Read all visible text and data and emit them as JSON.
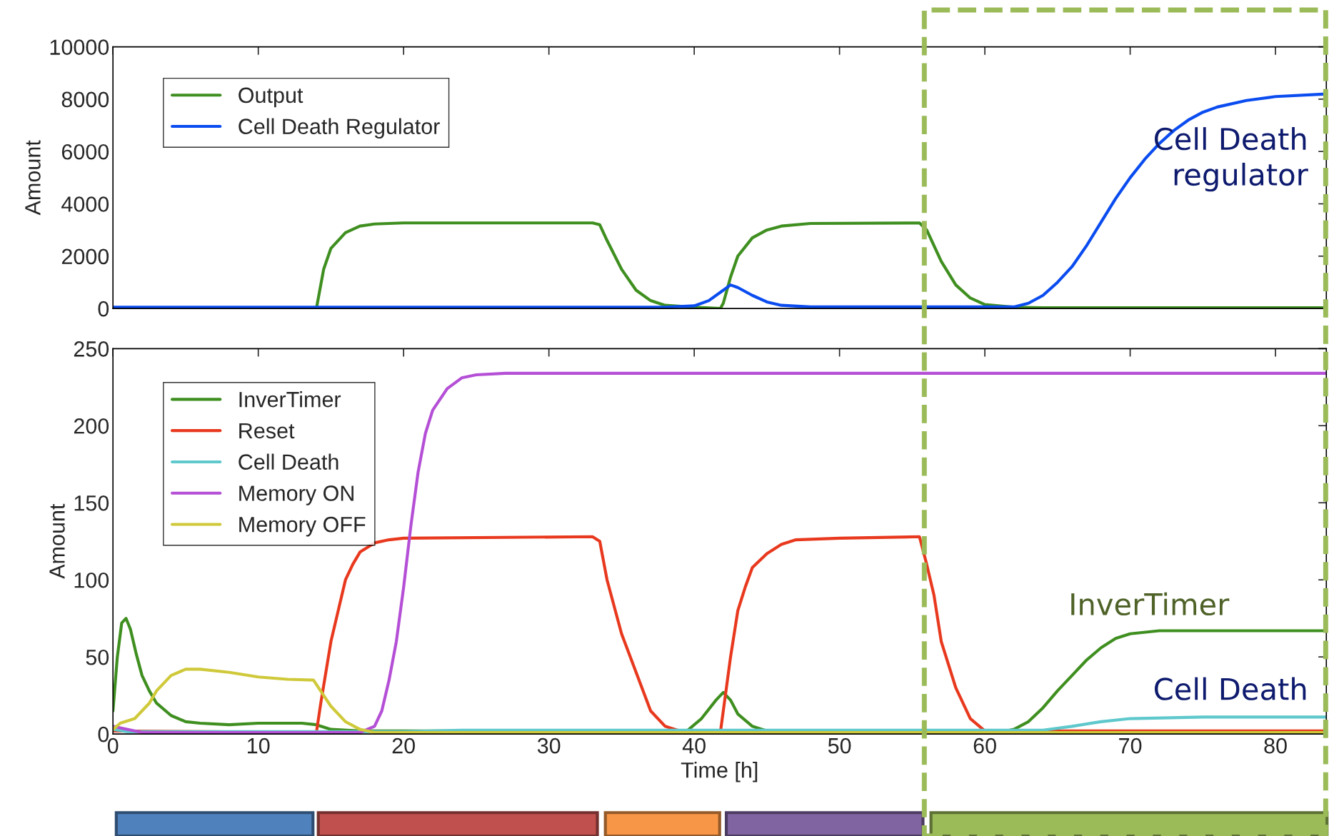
{
  "chart_data": [
    {
      "type": "line",
      "ylabel": "Amount",
      "xlim": [
        0,
        83.5
      ],
      "ylim": [
        0,
        10000
      ],
      "xticks": [
        0,
        10,
        20,
        30,
        40,
        50,
        60,
        70,
        80
      ],
      "yticks": [
        0,
        2000,
        4000,
        6000,
        8000,
        10000
      ],
      "tick_labels": "y",
      "grid": false,
      "legend": "top left",
      "line_style": "solid",
      "series": [
        {
          "name": "Output",
          "color": "#3f8f20",
          "x": [
            0,
            14,
            14.5,
            15,
            16,
            17,
            18,
            20,
            33,
            33.5,
            34,
            35,
            36,
            37,
            38,
            40,
            41.8,
            42,
            42.5,
            43,
            44,
            45,
            46,
            48,
            55.5,
            56,
            57,
            58,
            59,
            60,
            62,
            64,
            83.5
          ],
          "values": [
            0,
            0,
            1500,
            2300,
            2900,
            3150,
            3230,
            3270,
            3270,
            3200,
            2600,
            1500,
            700,
            300,
            120,
            50,
            0,
            200,
            1200,
            2000,
            2700,
            3000,
            3150,
            3250,
            3270,
            3000,
            1800,
            900,
            400,
            150,
            50,
            30,
            30
          ]
        },
        {
          "name": "Cell Death Regulator",
          "color": "#0a4cf0",
          "x": [
            0,
            38,
            40,
            41,
            42,
            42.5,
            43,
            44,
            45,
            46,
            48,
            62,
            63,
            64,
            65,
            66,
            67,
            68,
            69,
            70,
            71,
            72,
            73,
            74,
            75,
            76,
            78,
            80,
            83.5
          ],
          "values": [
            50,
            50,
            100,
            300,
            700,
            900,
            800,
            500,
            250,
            120,
            60,
            60,
            200,
            500,
            1000,
            1600,
            2400,
            3300,
            4200,
            5000,
            5700,
            6300,
            6800,
            7200,
            7500,
            7700,
            7950,
            8100,
            8200
          ]
        }
      ],
      "annotations": [
        "Cell Death\nregulator"
      ]
    },
    {
      "type": "line",
      "xlabel": "Time [h]",
      "ylabel": "Amount",
      "xlim": [
        0,
        83.5
      ],
      "ylim": [
        0,
        250
      ],
      "xticks": [
        0,
        10,
        20,
        30,
        40,
        50,
        60,
        70,
        80
      ],
      "yticks": [
        0,
        50,
        100,
        150,
        200,
        250
      ],
      "grid": false,
      "legend": "top left",
      "line_style": "solid",
      "series": [
        {
          "name": "InverTimer",
          "color": "#3f8f20",
          "x": [
            0,
            0.3,
            0.6,
            0.9,
            1.2,
            1.6,
            2,
            2.5,
            3,
            4,
            5,
            6,
            8,
            10,
            13,
            14,
            15,
            17,
            39.5,
            40.5,
            41.5,
            42,
            42.5,
            43,
            44,
            45,
            61.5,
            62,
            63,
            64,
            65,
            66,
            67,
            68,
            69,
            70,
            72,
            83.5
          ],
          "values": [
            15,
            50,
            72,
            75,
            68,
            52,
            38,
            28,
            20,
            12,
            8,
            7,
            6,
            7,
            7,
            6,
            3,
            2,
            2,
            10,
            22,
            27,
            22,
            13,
            5,
            2,
            2,
            3,
            8,
            17,
            28,
            38,
            48,
            56,
            62,
            65,
            67,
            67
          ]
        },
        {
          "name": "Reset",
          "color": "#e8391e",
          "x": [
            0,
            14,
            14.3,
            15,
            15.5,
            16,
            16.5,
            17,
            18,
            19,
            20,
            33,
            33.5,
            34,
            35,
            36,
            37,
            38,
            39,
            41.8,
            42,
            42.5,
            43,
            43.5,
            44,
            45,
            46,
            47,
            50,
            55.5,
            56,
            56.5,
            57,
            58,
            59,
            60,
            83.5
          ],
          "values": [
            2,
            1,
            20,
            60,
            80,
            100,
            110,
            118,
            124,
            126,
            127,
            128,
            125,
            100,
            65,
            40,
            15,
            5,
            2,
            1,
            15,
            50,
            80,
            95,
            108,
            117,
            123,
            126,
            127,
            128,
            110,
            90,
            60,
            30,
            10,
            2,
            2
          ]
        },
        {
          "name": "Cell Death",
          "color": "#5ec8cc",
          "x": [
            0,
            1,
            20,
            22,
            24,
            45,
            64,
            66,
            68,
            70,
            75,
            83.5
          ],
          "values": [
            3,
            1.5,
            1.5,
            2,
            2.5,
            2.5,
            2.5,
            5,
            8,
            10,
            11,
            11
          ]
        },
        {
          "name": "Memory ON",
          "color": "#b44fd6",
          "x": [
            0,
            2,
            17,
            18,
            18.5,
            19,
            19.5,
            20,
            20.5,
            21,
            21.5,
            22,
            23,
            24,
            25,
            27,
            83.5
          ],
          "values": [
            5,
            1,
            1,
            5,
            15,
            35,
            60,
            95,
            135,
            170,
            195,
            210,
            224,
            231,
            233,
            234,
            234
          ]
        },
        {
          "name": "Memory OFF",
          "color": "#cfc93a",
          "x": [
            0,
            0.5,
            1.5,
            2.5,
            3,
            4,
            5,
            6,
            8,
            10,
            12,
            13.8,
            14.5,
            15,
            16,
            17,
            18,
            83.5
          ],
          "values": [
            3,
            7,
            10,
            20,
            28,
            38,
            42,
            42,
            40,
            37,
            35.5,
            35,
            25,
            18,
            8,
            3,
            1,
            1
          ]
        }
      ],
      "annotations": [
        "InverTimer",
        "Cell Death"
      ]
    }
  ]
}
